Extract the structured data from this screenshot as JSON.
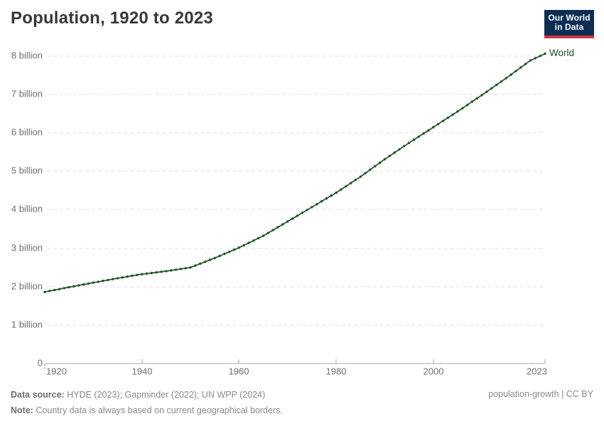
{
  "header": {
    "logo_line1": "Our World",
    "logo_line2": "in Data"
  },
  "colors": {
    "series": "#1c5426",
    "logo_background": "#0d2e54",
    "logo_underline": "#cf3444",
    "grid": "#e2e2e2",
    "axis": "#a8a8a8",
    "title_text": "#383838",
    "tick_text": "#6e6e6e"
  },
  "chart_data": {
    "type": "line",
    "title": "Population, 1920 to 2023",
    "xlabel": "",
    "ylabel": "",
    "xlim": [
      1920,
      2023
    ],
    "ylim": [
      0,
      8.3
    ],
    "grid": "horizontal dashed",
    "legend_position": "line-end label",
    "x_ticks": [
      "1920",
      "1940",
      "1960",
      "1980",
      "2000",
      "2023"
    ],
    "y_ticks": [
      "0",
      "1 billion",
      "2 billion",
      "3 billion",
      "4 billion",
      "5 billion",
      "6 billion",
      "7 billion",
      "8 billion"
    ],
    "unit": "billions of people",
    "series": [
      {
        "name": "World",
        "x": [
          1920,
          1921,
          1922,
          1923,
          1924,
          1925,
          1926,
          1927,
          1928,
          1929,
          1930,
          1931,
          1932,
          1933,
          1934,
          1935,
          1936,
          1937,
          1938,
          1939,
          1940,
          1941,
          1942,
          1943,
          1944,
          1945,
          1946,
          1947,
          1948,
          1949,
          1950,
          1951,
          1952,
          1953,
          1954,
          1955,
          1956,
          1957,
          1958,
          1959,
          1960,
          1961,
          1962,
          1963,
          1964,
          1965,
          1966,
          1967,
          1968,
          1969,
          1970,
          1971,
          1972,
          1973,
          1974,
          1975,
          1976,
          1977,
          1978,
          1979,
          1980,
          1981,
          1982,
          1983,
          1984,
          1985,
          1986,
          1987,
          1988,
          1989,
          1990,
          1991,
          1992,
          1993,
          1994,
          1995,
          1996,
          1997,
          1998,
          1999,
          2000,
          2001,
          2002,
          2003,
          2004,
          2005,
          2006,
          2007,
          2008,
          2009,
          2010,
          2011,
          2012,
          2013,
          2014,
          2015,
          2016,
          2017,
          2018,
          2019,
          2020,
          2021,
          2022,
          2023
        ],
        "values": [
          1.863,
          1.888,
          1.913,
          1.937,
          1.962,
          1.987,
          2.01,
          2.034,
          2.057,
          2.081,
          2.104,
          2.127,
          2.15,
          2.173,
          2.196,
          2.219,
          2.24,
          2.261,
          2.283,
          2.304,
          2.325,
          2.341,
          2.356,
          2.372,
          2.387,
          2.403,
          2.422,
          2.441,
          2.461,
          2.48,
          2.499,
          2.548,
          2.598,
          2.647,
          2.697,
          2.746,
          2.8,
          2.854,
          2.907,
          2.961,
          3.015,
          3.077,
          3.139,
          3.2,
          3.262,
          3.324,
          3.398,
          3.472,
          3.547,
          3.621,
          3.695,
          3.77,
          3.845,
          3.92,
          3.995,
          4.07,
          4.145,
          4.22,
          4.295,
          4.369,
          4.444,
          4.527,
          4.611,
          4.694,
          4.778,
          4.861,
          4.952,
          5.043,
          5.134,
          5.225,
          5.316,
          5.401,
          5.487,
          5.572,
          5.658,
          5.743,
          5.824,
          5.905,
          5.987,
          6.068,
          6.149,
          6.231,
          6.313,
          6.394,
          6.476,
          6.558,
          6.644,
          6.729,
          6.815,
          6.9,
          6.986,
          7.074,
          7.162,
          7.25,
          7.338,
          7.426,
          7.518,
          7.61,
          7.703,
          7.795,
          7.887,
          7.945,
          8.004,
          8.062
        ]
      }
    ]
  },
  "footer": {
    "source_label": "Data source:",
    "source_text": " HYDE (2023); Gapminder (2022); UN WPP (2024)",
    "note_label": "Note:",
    "note_text": " Country data is always based on current geographical borders.",
    "right_text": "population-growth | CC BY"
  }
}
